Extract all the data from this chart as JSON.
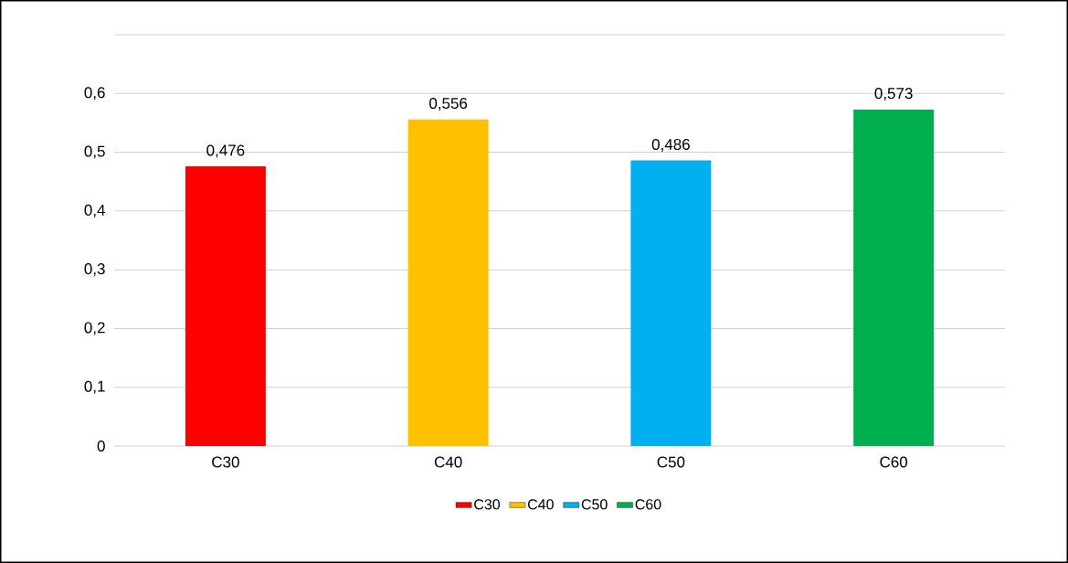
{
  "chart_data": {
    "type": "bar",
    "categories": [
      "C30",
      "C40",
      "C50",
      "C60"
    ],
    "series": [
      {
        "name": "C30",
        "color": "#ff0000",
        "values": [
          0.476,
          null,
          null,
          null
        ],
        "value_labels": [
          "0,476",
          null,
          null,
          null
        ]
      },
      {
        "name": "C40",
        "color": "#ffc000",
        "values": [
          null,
          0.556,
          null,
          null
        ],
        "value_labels": [
          null,
          "0,556",
          null,
          null
        ]
      },
      {
        "name": "C50",
        "color": "#00b0f0",
        "values": [
          null,
          null,
          0.486,
          null
        ],
        "value_labels": [
          null,
          null,
          "0,486",
          null
        ]
      },
      {
        "name": "C60",
        "color": "#00b050",
        "values": [
          null,
          null,
          null,
          0.573
        ],
        "value_labels": [
          null,
          null,
          null,
          "0,573"
        ]
      }
    ],
    "ylim": [
      0,
      0.7
    ],
    "yticks": [
      0,
      {
        "value": 0.1,
        "label": "0,1"
      },
      {
        "value": 0.2,
        "label": "0,2"
      },
      {
        "value": 0.3,
        "label": "0,3"
      },
      {
        "value": 0.4,
        "label": "0,4"
      },
      {
        "value": 0.5,
        "label": "0,5"
      },
      {
        "value": 0.6,
        "label": "0,6"
      },
      {
        "value": 0.7,
        "label": null
      }
    ],
    "grid": "y",
    "legend": "bottom"
  }
}
